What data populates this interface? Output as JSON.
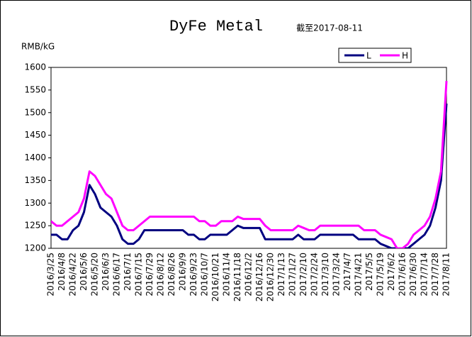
{
  "chart_data": {
    "type": "line",
    "title": "DyFe Metal",
    "subtitle": "截至2017-08-11",
    "y_label": "RMB/kG",
    "categories": [
      "2016/3/25",
      null,
      "2016/4/8",
      null,
      "2016/4/22",
      null,
      "2016/5/6",
      null,
      "2016/5/20",
      null,
      "2016/6/3",
      null,
      "2016/6/17",
      null,
      "2016/7/1",
      null,
      "2016/7/15",
      null,
      "2016/7/29",
      null,
      "2016/8/12",
      null,
      "2016/8/26",
      null,
      "2016/9/9",
      null,
      "2016/9/23",
      null,
      "2016/10/7",
      null,
      "2016/10/21",
      null,
      "2016/11/4",
      null,
      "2016/11/18",
      null,
      "2016/12/2",
      null,
      "2016/12/16",
      null,
      "2016/12/30",
      null,
      "2017/1/13",
      null,
      "2017/1/27",
      null,
      "2017/2/10",
      null,
      "2017/2/24",
      null,
      "2017/3/10",
      null,
      "2017/3/24",
      null,
      "2017/4/7",
      null,
      "2017/4/21",
      null,
      "2017/5/5",
      null,
      "2017/5/19",
      null,
      "2017/6/2",
      null,
      "2017/6/16",
      null,
      "2017/6/30",
      null,
      "2017/7/14",
      null,
      "2017/7/28",
      null,
      "2017/8/11"
    ],
    "series": [
      {
        "name": "L",
        "color": "#000080",
        "values": [
          1230,
          1230,
          1220,
          1220,
          1240,
          1250,
          1280,
          1340,
          1320,
          1290,
          1280,
          1270,
          1250,
          1220,
          1210,
          1210,
          1220,
          1240,
          1240,
          1240,
          1240,
          1240,
          1240,
          1240,
          1240,
          1230,
          1230,
          1220,
          1220,
          1230,
          1230,
          1230,
          1230,
          1240,
          1250,
          1245,
          1245,
          1245,
          1245,
          1220,
          1220,
          1220,
          1220,
          1220,
          1220,
          1230,
          1220,
          1220,
          1220,
          1230,
          1230,
          1230,
          1230,
          1230,
          1230,
          1230,
          1220,
          1220,
          1220,
          1220,
          1210,
          1205,
          1200,
          1200,
          1200,
          1200,
          1210,
          1220,
          1230,
          1250,
          1290,
          1350,
          1520
        ]
      },
      {
        "name": "H",
        "color": "#ff00ff",
        "values": [
          1260,
          1250,
          1250,
          1260,
          1270,
          1280,
          1310,
          1370,
          1360,
          1340,
          1320,
          1310,
          1280,
          1250,
          1240,
          1240,
          1250,
          1260,
          1270,
          1270,
          1270,
          1270,
          1270,
          1270,
          1270,
          1270,
          1270,
          1260,
          1260,
          1250,
          1250,
          1260,
          1260,
          1260,
          1270,
          1265,
          1265,
          1265,
          1265,
          1250,
          1240,
          1240,
          1240,
          1240,
          1240,
          1250,
          1245,
          1240,
          1240,
          1250,
          1250,
          1250,
          1250,
          1250,
          1250,
          1250,
          1250,
          1240,
          1240,
          1240,
          1230,
          1225,
          1220,
          1200,
          1200,
          1210,
          1230,
          1240,
          1250,
          1270,
          1310,
          1370,
          1570
        ]
      }
    ],
    "ylim": [
      1200,
      1600
    ],
    "yticks": [
      1200,
      1250,
      1300,
      1350,
      1400,
      1450,
      1500,
      1550,
      1600
    ],
    "legend": "top-right",
    "grid": false
  }
}
